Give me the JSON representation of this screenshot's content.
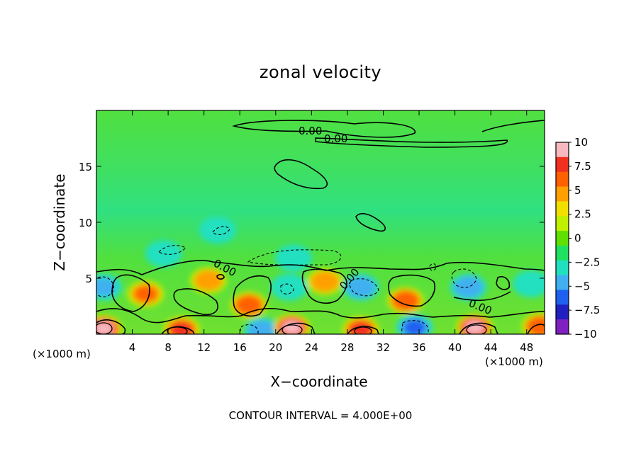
{
  "chart_data": {
    "type": "heatmap",
    "title": "zonal velocity",
    "xlabel": "X−coordinate",
    "ylabel": "Z−coordinate",
    "x_unit_left": "(×1000 m)",
    "x_unit_right": "(×1000 m)",
    "xlim": [
      0,
      50
    ],
    "ylim": [
      0,
      20
    ],
    "x_ticks": [
      4,
      8,
      12,
      16,
      20,
      24,
      28,
      32,
      36,
      40,
      44,
      48
    ],
    "y_ticks": [
      5,
      10,
      15
    ],
    "colorbar": {
      "ticks": [
        "10",
        "7.5",
        "5",
        "2.5",
        "0",
        "−2.5",
        "−5",
        "−7.5",
        "−10"
      ],
      "range": [
        -10,
        10
      ],
      "colors": [
        "#f8b8c0",
        "#f03020",
        "#ff6000",
        "#ffa000",
        "#f0e000",
        "#c0f000",
        "#60e000",
        "#20e060",
        "#20e0c0",
        "#40b0f0",
        "#2060f0",
        "#2020c0",
        "#8020c0"
      ]
    },
    "contour_labels": [
      "0.00",
      "0.00",
      "0.00",
      "0.00",
      "0.00"
    ],
    "contour_interval_text": "CONTOUR INTERVAL = 4.000E+00",
    "background_value": 0,
    "features": [
      {
        "x": 0.8,
        "z": 0.5,
        "value": 10
      },
      {
        "x": 0.8,
        "z": 4.2,
        "value": -4.5
      },
      {
        "x": 5.5,
        "z": 3.6,
        "value": 6
      },
      {
        "x": 9.5,
        "z": 0.4,
        "value": 8
      },
      {
        "x": 12.5,
        "z": 4.8,
        "value": 5
      },
      {
        "x": 17.0,
        "z": 2.6,
        "value": 7.5
      },
      {
        "x": 18.5,
        "z": 0.3,
        "value": -5
      },
      {
        "x": 21.8,
        "z": 0.6,
        "value": 9.5
      },
      {
        "x": 21.5,
        "z": 4.2,
        "value": -4
      },
      {
        "x": 25.5,
        "z": 4.7,
        "value": 5.5
      },
      {
        "x": 29.5,
        "z": 4.2,
        "value": -5
      },
      {
        "x": 29.5,
        "z": 0.4,
        "value": 8.5
      },
      {
        "x": 34.5,
        "z": 3.0,
        "value": 7
      },
      {
        "x": 35.5,
        "z": 0.6,
        "value": -6
      },
      {
        "x": 41.5,
        "z": 4.2,
        "value": -5
      },
      {
        "x": 42.2,
        "z": 0.6,
        "value": 10
      },
      {
        "x": 48.5,
        "z": 4.5,
        "value": -4
      },
      {
        "x": 49.5,
        "z": 0.7,
        "value": 7
      },
      {
        "x": 7.5,
        "z": 7.2,
        "value": -3
      },
      {
        "x": 22.0,
        "z": 6.8,
        "value": -3
      },
      {
        "x": 13.5,
        "z": 9.3,
        "value": -3
      }
    ]
  }
}
